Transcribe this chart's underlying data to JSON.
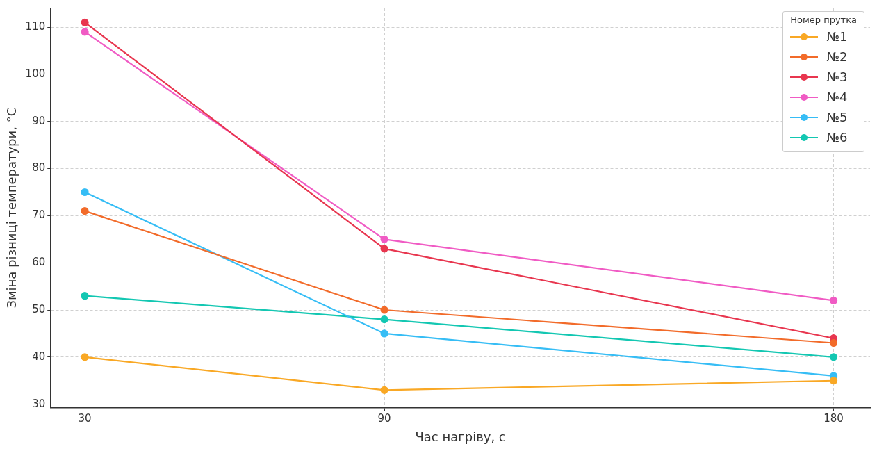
{
  "chart_data": {
    "type": "line",
    "xlabel": "Час нагріву, с",
    "ylabel": "Зміна різниці температури, °C",
    "legend_title": "Номер прутка",
    "x": [
      30,
      90,
      180
    ],
    "xlim": [
      23.2,
      187.3
    ],
    "xticks": [
      30,
      90,
      180
    ],
    "ylim": [
      29.3,
      114
    ],
    "yticks": [
      30,
      40,
      50,
      60,
      70,
      80,
      90,
      100,
      110
    ],
    "grid": true,
    "legend": "top right",
    "marker": "circle",
    "line_style": "solid",
    "series": [
      {
        "name": "№1",
        "color": "#f9a825",
        "values": [
          40,
          33,
          35
        ]
      },
      {
        "name": "№2",
        "color": "#f26b2a",
        "values": [
          71,
          50,
          43
        ]
      },
      {
        "name": "№3",
        "color": "#e8364f",
        "values": [
          111,
          63,
          44
        ]
      },
      {
        "name": "№4",
        "color": "#f05bc4",
        "values": [
          109,
          65,
          52
        ]
      },
      {
        "name": "№5",
        "color": "#36bdf5",
        "values": [
          75,
          45,
          36
        ]
      },
      {
        "name": "№6",
        "color": "#13c7b2",
        "values": [
          53,
          48,
          40
        ]
      }
    ]
  }
}
